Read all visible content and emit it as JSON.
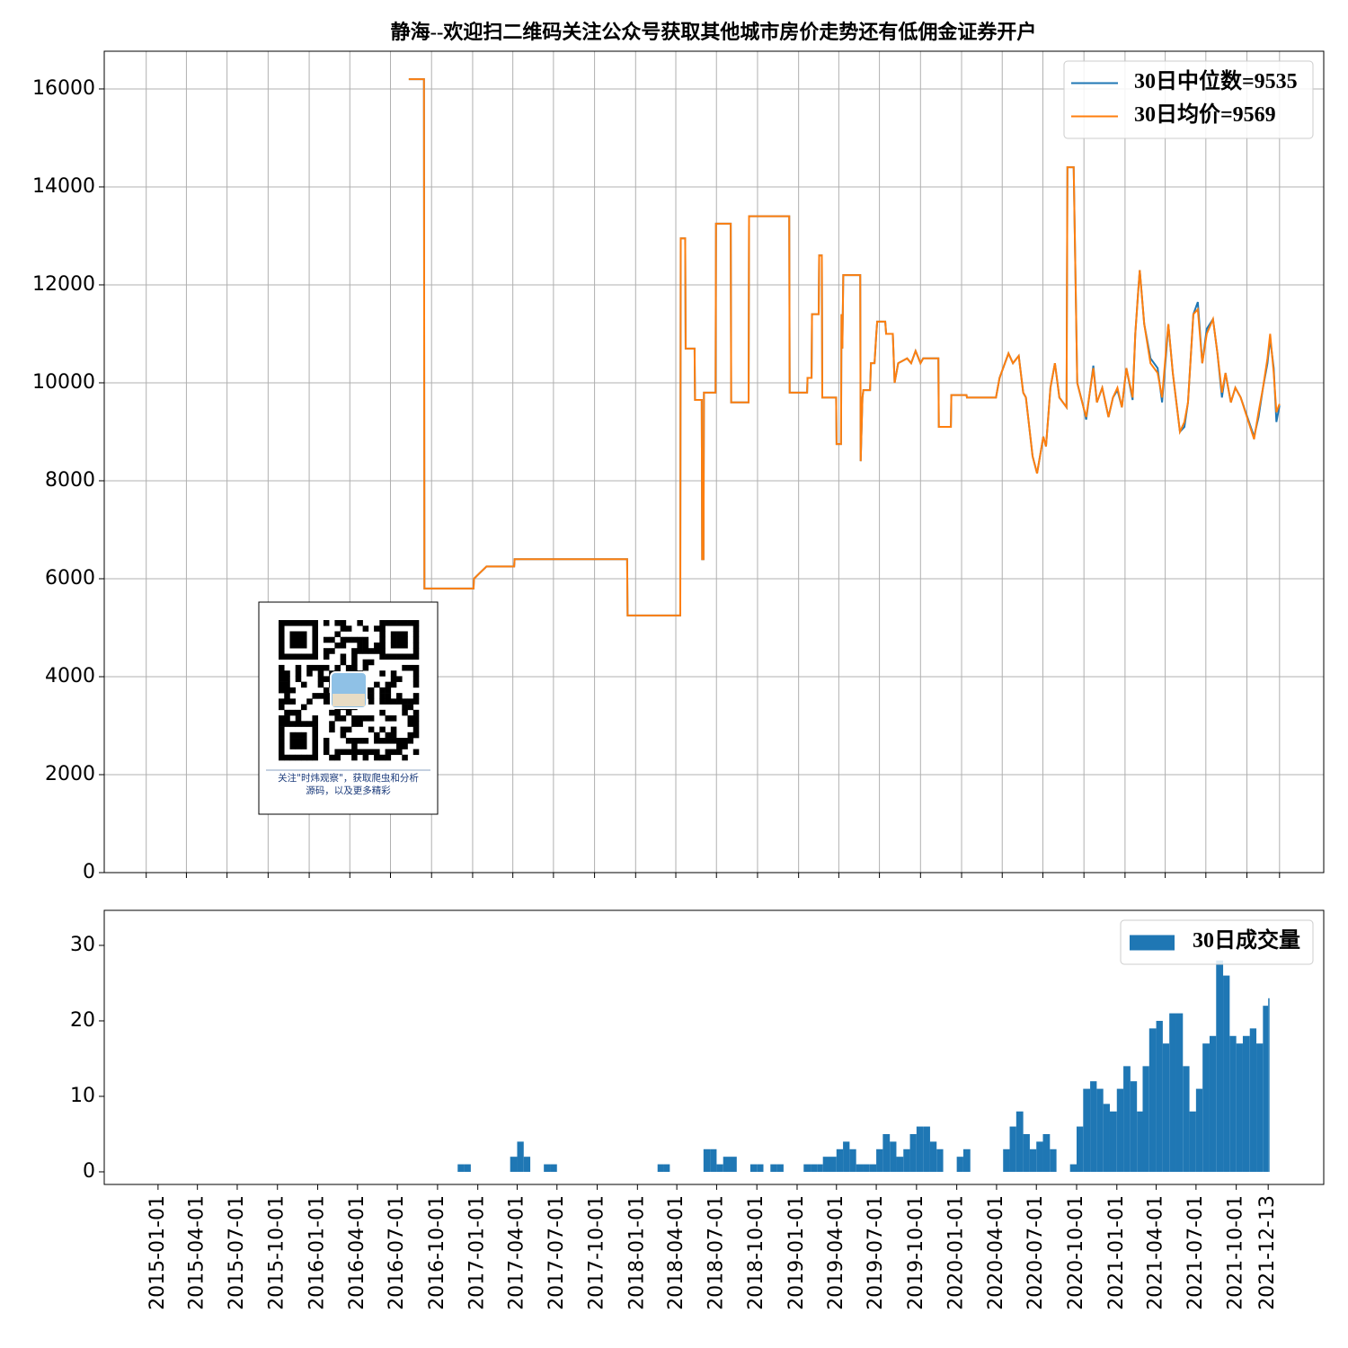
{
  "chart_data": [
    {
      "type": "line",
      "title": "静海--欢迎扫二维码关注公众号获取其他城市房价走势还有低佣金证券开户",
      "x": [
        "2016-08-11",
        "2016-09-14",
        "2016-09-15",
        "2017-01-03",
        "2017-01-04",
        "2017-01-15",
        "2017-02-01",
        "2017-04-04",
        "2017-04-05",
        "2017-12-13",
        "2017-12-14",
        "2018-04-11",
        "2018-04-12",
        "2018-04-22",
        "2018-04-23",
        "2018-05-13",
        "2018-05-14",
        "2018-05-29",
        "2018-05-30",
        "2018-06-02",
        "2018-06-03",
        "2018-06-29",
        "2018-06-30",
        "2018-08-02",
        "2018-08-03",
        "2018-09-11",
        "2018-09-12",
        "2018-12-11",
        "2018-12-12",
        "2019-01-20",
        "2019-01-21",
        "2019-01-30",
        "2019-01-31",
        "2019-02-15",
        "2019-02-16",
        "2019-02-22",
        "2019-02-23",
        "2019-03-26",
        "2019-03-27",
        "2019-04-06",
        "2019-04-07",
        "2019-04-09",
        "2019-04-11",
        "2019-05-19",
        "2019-05-20",
        "2019-05-24",
        "2019-05-26",
        "2019-06-10",
        "2019-06-12",
        "2019-06-20",
        "2019-06-24",
        "2019-06-26",
        "2019-07-14",
        "2019-07-16",
        "2019-07-31",
        "2019-08-04",
        "2019-08-12",
        "2019-08-22",
        "2019-09-01",
        "2019-09-10",
        "2019-09-20",
        "2019-10-01",
        "2019-10-07",
        "2019-11-10",
        "2019-11-11",
        "2019-12-08",
        "2019-12-09",
        "2020-01-12",
        "2020-01-13",
        "2020-03-18",
        "2020-03-26",
        "2020-04-15",
        "2020-04-25",
        "2020-05-08",
        "2020-05-18",
        "2020-05-24",
        "2020-06-08",
        "2020-06-18",
        "2020-07-02",
        "2020-07-08",
        "2020-07-18",
        "2020-07-28",
        "2020-08-07",
        "2020-08-23",
        "2020-08-25",
        "2020-09-08",
        "2020-09-16",
        "2020-09-30",
        "2020-10-06",
        "2020-10-22",
        "2020-10-30",
        "2020-11-11",
        "2020-11-25",
        "2020-12-05",
        "2020-12-15",
        "2020-12-25",
        "2021-01-04",
        "2021-01-18",
        "2021-01-24",
        "2021-01-30",
        "2021-02-03",
        "2021-02-13",
        "2021-02-27",
        "2021-03-15",
        "2021-03-25",
        "2021-04-04",
        "2021-04-08",
        "2021-04-18",
        "2021-05-04",
        "2021-05-14",
        "2021-05-22",
        "2021-06-03",
        "2021-06-13",
        "2021-06-23",
        "2021-07-03",
        "2021-07-17",
        "2021-07-27",
        "2021-08-06",
        "2021-08-14",
        "2021-08-26",
        "2021-09-05",
        "2021-09-17",
        "2021-10-17",
        "2021-10-27",
        "2021-11-06",
        "2021-11-16",
        "2021-11-22",
        "2021-11-30",
        "2021-12-06",
        "2021-12-13"
      ],
      "series": [
        {
          "name": "30日中位数=9535",
          "color": "#1f77b4",
          "values": [
            16200,
            16200,
            5800,
            5800,
            6000,
            6100,
            6250,
            6250,
            6400,
            6400,
            5250,
            5250,
            12950,
            12950,
            10700,
            10700,
            9650,
            9650,
            6400,
            6400,
            9800,
            9800,
            13250,
            13250,
            9600,
            9600,
            13400,
            13400,
            9800,
            9800,
            10100,
            10100,
            11400,
            11400,
            12600,
            12600,
            9700,
            9700,
            8750,
            8750,
            11400,
            10700,
            12200,
            12200,
            8400,
            9700,
            9850,
            9850,
            10400,
            10400,
            11000,
            11250,
            11250,
            11000,
            11000,
            10000,
            10400,
            10450,
            10500,
            10400,
            10650,
            10400,
            10500,
            10500,
            9100,
            9100,
            9750,
            9750,
            9700,
            9700,
            10100,
            10600,
            10400,
            10550,
            9800,
            9700,
            8500,
            8150,
            8900,
            8700,
            9900,
            10400,
            9700,
            9500,
            14400,
            14400,
            10000,
            9500,
            9250,
            10350,
            9600,
            9900,
            9300,
            9700,
            9850,
            9500,
            10300,
            9650,
            11000,
            11800,
            12300,
            11200,
            10500,
            10300,
            9600,
            10700,
            11200,
            10200,
            9000,
            9100,
            9600,
            11400,
            11650,
            10400,
            11100,
            11300,
            10600,
            9700,
            10200,
            9600,
            9900,
            9700,
            8900,
            9300,
            9900,
            10400,
            10900,
            10300,
            9200,
            9535
          ]
        },
        {
          "name": "30日均价=9569",
          "color": "#ff7f0e",
          "values": [
            16200,
            16200,
            5800,
            5800,
            6000,
            6100,
            6250,
            6250,
            6400,
            6400,
            5250,
            5250,
            12950,
            12950,
            10700,
            10700,
            9650,
            9650,
            6400,
            6400,
            9800,
            9800,
            13250,
            13250,
            9600,
            9600,
            13400,
            13400,
            9800,
            9800,
            10100,
            10100,
            11400,
            11400,
            12600,
            12600,
            9700,
            9700,
            8750,
            8750,
            11400,
            10700,
            12200,
            12200,
            8400,
            9700,
            9850,
            9850,
            10400,
            10400,
            11000,
            11250,
            11250,
            11000,
            11000,
            10000,
            10400,
            10450,
            10500,
            10400,
            10650,
            10400,
            10500,
            10500,
            9100,
            9100,
            9750,
            9750,
            9700,
            9700,
            10100,
            10600,
            10400,
            10550,
            9800,
            9700,
            8500,
            8150,
            8900,
            8700,
            9900,
            10400,
            9700,
            9500,
            14400,
            14400,
            10000,
            9500,
            9300,
            10300,
            9600,
            9900,
            9300,
            9700,
            9900,
            9500,
            10300,
            9700,
            11000,
            11800,
            12300,
            11200,
            10400,
            10200,
            9700,
            10800,
            11200,
            10200,
            9000,
            9200,
            9600,
            11400,
            11500,
            10400,
            11000,
            11300,
            10600,
            9800,
            10200,
            9600,
            9900,
            9700,
            8850,
            9400,
            9900,
            10500,
            11000,
            10200,
            9400,
            9569
          ]
        }
      ],
      "xlim": [
        "2014-09-29",
        "2022-03-22"
      ],
      "xticks": [
        "2015-01-01",
        "2015-04-01",
        "2015-07-01",
        "2015-10-01",
        "2016-01-01",
        "2016-04-01",
        "2016-07-01",
        "2016-10-01",
        "2017-01-01",
        "2017-04-01",
        "2017-07-01",
        "2017-10-01",
        "2018-01-01",
        "2018-04-01",
        "2018-07-01",
        "2018-10-01",
        "2019-01-01",
        "2019-04-01",
        "2019-07-01",
        "2019-10-01",
        "2020-01-01",
        "2020-04-01",
        "2020-07-01",
        "2020-10-01",
        "2021-01-01",
        "2021-04-01",
        "2021-07-01",
        "2021-10-01",
        "2021-12-13"
      ],
      "ylim": [
        0,
        16770
      ],
      "yticks": [
        0,
        2000,
        4000,
        6000,
        8000,
        10000,
        12000,
        14000,
        16000
      ],
      "grid": true,
      "legend": "upper right",
      "annotations": [
        "关注\"时炜观察\"，获取爬虫和分析",
        "源码，以及更多精彩"
      ]
    },
    {
      "type": "bar",
      "x": [
        "2016-11-01",
        "2016-11-16",
        "2016-12-01",
        "2016-12-16",
        "2017-01-01",
        "2017-01-16",
        "2017-02-01",
        "2017-02-16",
        "2017-03-01",
        "2017-03-16",
        "2017-04-01",
        "2017-04-16",
        "2017-05-01",
        "2017-05-16",
        "2017-06-01",
        "2017-06-16",
        "2017-07-01",
        "2017-07-16",
        "2017-08-01",
        "2017-08-16",
        "2017-09-01",
        "2017-09-16",
        "2017-10-01",
        "2017-10-16",
        "2017-11-01",
        "2017-11-16",
        "2017-12-01",
        "2017-12-16",
        "2018-01-01",
        "2018-01-16",
        "2018-02-01",
        "2018-02-16",
        "2018-03-01",
        "2018-03-16",
        "2018-04-01",
        "2018-04-16",
        "2018-05-01",
        "2018-05-16",
        "2018-06-01",
        "2018-06-16",
        "2018-07-01",
        "2018-07-16",
        "2018-08-01",
        "2018-08-16",
        "2018-09-01",
        "2018-09-16",
        "2018-10-01",
        "2018-10-16",
        "2018-11-01",
        "2018-11-16",
        "2018-12-01",
        "2018-12-16",
        "2019-01-01",
        "2019-01-16",
        "2019-02-01",
        "2019-02-16",
        "2019-03-01",
        "2019-03-16",
        "2019-04-01",
        "2019-04-16",
        "2019-05-01",
        "2019-05-16",
        "2019-06-01",
        "2019-06-16",
        "2019-07-01",
        "2019-07-16",
        "2019-08-01",
        "2019-08-16",
        "2019-09-01",
        "2019-09-16",
        "2019-10-01",
        "2019-10-16",
        "2019-11-01",
        "2019-11-16",
        "2019-12-01",
        "2019-12-16",
        "2020-01-01",
        "2020-01-16",
        "2020-02-01",
        "2020-02-16",
        "2020-03-01",
        "2020-03-16",
        "2020-04-01",
        "2020-04-16",
        "2020-05-01",
        "2020-05-16",
        "2020-06-01",
        "2020-06-16",
        "2020-07-01",
        "2020-07-16",
        "2020-08-01",
        "2020-08-16",
        "2020-09-01",
        "2020-09-16",
        "2020-10-01",
        "2020-10-16",
        "2020-11-01",
        "2020-11-16",
        "2020-12-01",
        "2020-12-16",
        "2021-01-01",
        "2021-01-16",
        "2021-02-01",
        "2021-02-16",
        "2021-03-01",
        "2021-03-16",
        "2021-04-01",
        "2021-04-16",
        "2021-05-01",
        "2021-05-16",
        "2021-06-01",
        "2021-06-16",
        "2021-07-01",
        "2021-07-16",
        "2021-08-01",
        "2021-08-16",
        "2021-09-01",
        "2021-09-16",
        "2021-10-01",
        "2021-10-16",
        "2021-11-01",
        "2021-11-16",
        "2021-12-01",
        "2021-12-13"
      ],
      "series": [
        {
          "name": "30日成交量",
          "color": "#1f77b4",
          "values": [
            0,
            1,
            1,
            0,
            0,
            0,
            0,
            0,
            0,
            2,
            4,
            2,
            0,
            0,
            1,
            1,
            0,
            0,
            0,
            0,
            0,
            0,
            0,
            0,
            0,
            0,
            0,
            0,
            0,
            0,
            0,
            1,
            1,
            0,
            0,
            0,
            0,
            0,
            3,
            3,
            1,
            2,
            2,
            0,
            0,
            1,
            1,
            0,
            1,
            1,
            0,
            0,
            0,
            1,
            1,
            1,
            2,
            2,
            3,
            4,
            3,
            1,
            1,
            1,
            3,
            5,
            4,
            2,
            3,
            5,
            6,
            6,
            4,
            3,
            0,
            0,
            2,
            3,
            0,
            0,
            0,
            0,
            0,
            3,
            6,
            8,
            5,
            3,
            4,
            5,
            3,
            0,
            0,
            1,
            6,
            11,
            12,
            11,
            9,
            8,
            11,
            14,
            12,
            8,
            14,
            19,
            20,
            17,
            21,
            21,
            14,
            8,
            11,
            17,
            18,
            28,
            26,
            18,
            17,
            18,
            19,
            17,
            22,
            23
          ]
        }
      ],
      "xlim": [
        "2014-08-31",
        "2022-04-19"
      ],
      "xticks": [
        "2015-01-01",
        "2015-04-01",
        "2015-07-01",
        "2015-10-01",
        "2016-01-01",
        "2016-04-01",
        "2016-07-01",
        "2016-10-01",
        "2017-01-01",
        "2017-04-01",
        "2017-07-01",
        "2017-10-01",
        "2018-01-01",
        "2018-04-01",
        "2018-07-01",
        "2018-10-01",
        "2019-01-01",
        "2019-04-01",
        "2019-07-01",
        "2019-10-01",
        "2020-01-01",
        "2020-04-01",
        "2020-07-01",
        "2020-10-01",
        "2021-01-01",
        "2021-04-01",
        "2021-07-01",
        "2021-10-01",
        "2021-12-13"
      ],
      "ylim": [
        -1.67,
        34.64
      ],
      "yticks": [
        0,
        10,
        20,
        30
      ],
      "grid": false,
      "legend": "upper right"
    }
  ]
}
